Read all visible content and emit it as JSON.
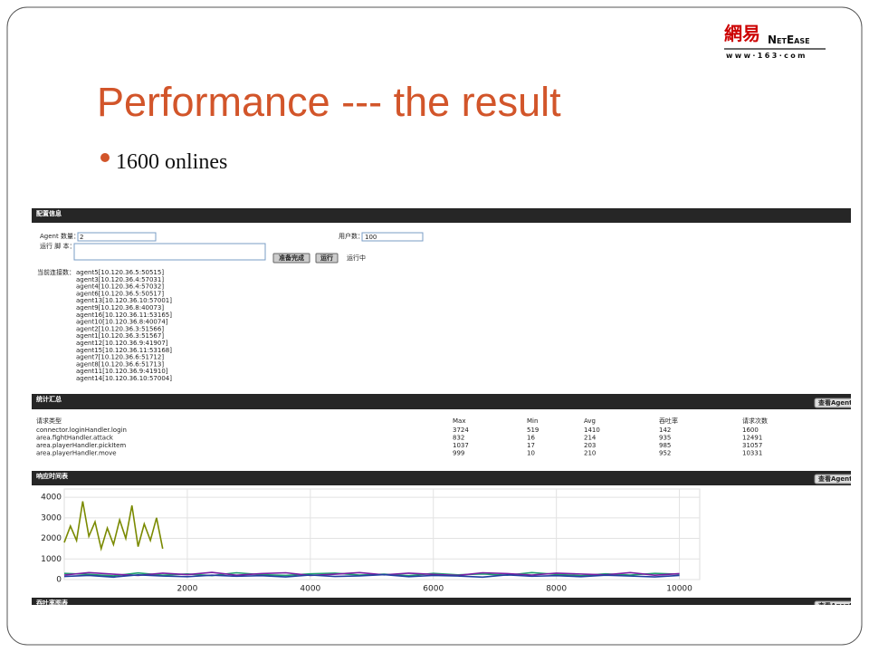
{
  "logo": {
    "chinese": "網易",
    "brand": "NetEase",
    "url": "www·163·com"
  },
  "title": "Performance --- the result",
  "bullets": [
    "1600 onlines"
  ],
  "panel_config": {
    "header": "配置信息",
    "agent_count_label": "Agent 数量：",
    "agent_count_value": "2",
    "user_count_label": "用户数：",
    "user_count_value": "100",
    "script_label": "运行 脚 本：",
    "buttons": [
      "准备完成",
      "运行"
    ],
    "status": "运行中",
    "connections_label": "当前连接数：",
    "connections": [
      "agent5[10.120.36.5:50515]",
      "agent3[10.120.36.4:57031]",
      "agent4[10.120.36.4:57032]",
      "agent6[10.120.36.5:50517]",
      "agent13[10.120.36.10:57001]",
      "agent9[10.120.36.8:40073]",
      "agent16[10.120.36.11:53165]",
      "agent10[10.120.36.8:40074]",
      "agent2[10.120.36.3:51566]",
      "agent1[10.120.36.3:51567]",
      "agent12[10.120.36.9:41907]",
      "agent15[10.120.36.11:53168]",
      "agent7[10.120.36.6:51712]",
      "agent8[10.120.36.6:51713]",
      "agent11[10.120.36.9:41910]",
      "agent14[10.120.36.10:57004]"
    ]
  },
  "panel_stats": {
    "header": "统计汇总",
    "button": "查看Agent",
    "columns": [
      "请求类型",
      "Max",
      "Min",
      "Avg",
      "吞吐率",
      "请求次数"
    ],
    "rows": [
      [
        "connector.loginHandler.login",
        3724,
        519,
        1410,
        142,
        1600
      ],
      [
        "area.fightHandler.attack",
        832,
        16,
        214,
        935,
        12491
      ],
      [
        "area.playerHandler.pickItem",
        1037,
        17,
        203,
        985,
        31057
      ],
      [
        "area.playerHandler.move",
        999,
        10,
        210,
        952,
        10331
      ]
    ]
  },
  "panel_response": {
    "header": "响应时间表",
    "button": "查看Agent",
    "chart": {
      "type": "line",
      "xlim": [
        0,
        10330
      ],
      "ylim": [
        0,
        4400
      ],
      "xticks": [
        2000,
        4000,
        6000,
        8000,
        10000
      ],
      "yticks": [
        0,
        1000,
        2000,
        3000,
        4000
      ],
      "grid": true,
      "series": [
        {
          "color": "#7a8a00",
          "x": [
            0,
            100,
            200,
            300,
            400,
            500,
            600,
            700,
            800,
            900,
            1000,
            1100,
            1200,
            1300,
            1400,
            1500,
            1600
          ],
          "values": [
            1800,
            2600,
            1900,
            3800,
            2100,
            2800,
            1500,
            2500,
            1700,
            2900,
            2000,
            3600,
            1600,
            2700,
            1900,
            3000,
            1500
          ]
        },
        {
          "color": "#1f9f6f",
          "x": [
            0,
            400,
            800,
            1200,
            1600,
            2000,
            2400,
            2800,
            3200,
            3600,
            4000,
            4400,
            4800,
            5200,
            5600,
            6000,
            6400,
            6800,
            7200,
            7600,
            8000,
            8400,
            8800,
            9200,
            9600,
            10000
          ],
          "values": [
            300,
            250,
            180,
            320,
            210,
            270,
            190,
            330,
            240,
            200,
            280,
            310,
            220,
            260,
            190,
            300,
            230,
            270,
            210,
            340,
            250,
            190,
            280,
            220,
            300,
            260
          ]
        },
        {
          "color": "#7b1fa2",
          "x": [
            0,
            400,
            800,
            1200,
            1600,
            2000,
            2400,
            2800,
            3200,
            3600,
            4000,
            4400,
            4800,
            5200,
            5600,
            6000,
            6400,
            6800,
            7200,
            7600,
            8000,
            8400,
            8800,
            9200,
            9600,
            10000
          ],
          "values": [
            220,
            340,
            260,
            200,
            310,
            240,
            350,
            210,
            290,
            330,
            200,
            260,
            340,
            230,
            310,
            250,
            200,
            330,
            290,
            220,
            310,
            270,
            230,
            340,
            210,
            290
          ]
        },
        {
          "color": "#2040a0",
          "x": [
            0,
            400,
            800,
            1200,
            1600,
            2000,
            2400,
            2800,
            3200,
            3600,
            4000,
            4400,
            4800,
            5200,
            5600,
            6000,
            6400,
            6800,
            7200,
            7600,
            8000,
            8400,
            8800,
            9200,
            9600,
            10000
          ],
          "values": [
            150,
            200,
            120,
            230,
            170,
            140,
            210,
            160,
            190,
            130,
            220,
            150,
            180,
            240,
            140,
            200,
            170,
            120,
            230,
            160,
            190,
            140,
            210,
            170,
            130,
            200
          ]
        }
      ]
    }
  },
  "panel_throughput": {
    "header": "吞吐率图表",
    "button": "查看Agent"
  }
}
